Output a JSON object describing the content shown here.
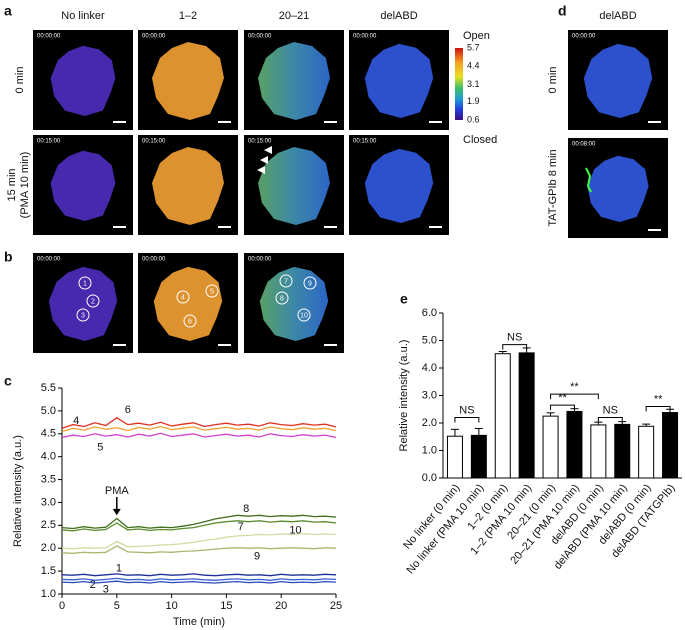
{
  "panel_labels": [
    "a",
    "b",
    "c",
    "d",
    "e"
  ],
  "panel_a": {
    "columns": [
      "No linker",
      "1–2",
      "20–21",
      "delABD"
    ],
    "rows": [
      [
        "0 min"
      ],
      [
        "15 min",
        "(PMA 10 min)"
      ]
    ],
    "timestamps": [
      "00:00:00",
      "00:15:00"
    ]
  },
  "colorbar": {
    "top_label": "Open",
    "bottom_label": "Closed",
    "ticks": [
      5.7,
      4.4,
      3.1,
      1.9,
      0.6
    ]
  },
  "panel_b": {
    "timestamp": "00:00:00",
    "rois": [
      "1",
      "2",
      "3",
      "4",
      "5",
      "6",
      "7",
      "8",
      "9",
      "10"
    ]
  },
  "panel_d": {
    "column": "delABD",
    "rows": [
      "0 min",
      "TAT-GPIb 8 min"
    ],
    "timestamps": [
      "00:00:00",
      "00:08:00"
    ]
  },
  "chart_data": [
    {
      "type": "line",
      "x_label": "Time (min)",
      "y_label": "Relative intensity (a.u.)",
      "x": [
        0,
        1,
        2,
        3,
        4,
        5,
        6,
        7,
        8,
        9,
        10,
        11,
        12,
        13,
        14,
        15,
        16,
        17,
        18,
        19,
        20,
        21,
        22,
        23,
        24,
        25
      ],
      "xlim": [
        0,
        25
      ],
      "xticks": [
        0,
        5,
        10,
        15,
        20,
        25
      ],
      "ylim": [
        1,
        5.5
      ],
      "yticks": [
        {
          "value": 1,
          "label": "1.0"
        },
        {
          "value": 1.5,
          "label": "1.5"
        },
        {
          "value": 2,
          "label": "2.0"
        },
        {
          "value": 2.5,
          "label": "2.5"
        },
        {
          "value": 3,
          "label": "3.0"
        },
        {
          "value": 3.5,
          "label": "3.5"
        },
        {
          "value": 4,
          "label": "4.0"
        },
        {
          "value": 4.5,
          "label": "4.5"
        },
        {
          "value": 5,
          "label": "5.0"
        },
        {
          "value": 5.5,
          "label": "5.5"
        }
      ],
      "annotation": {
        "text": "PMA",
        "x": 5
      },
      "series": [
        {
          "name": "1",
          "color": "#1f2f9a",
          "values": [
            1.42,
            1.41,
            1.43,
            1.4,
            1.42,
            1.44,
            1.41,
            1.42,
            1.4,
            1.43,
            1.41,
            1.42,
            1.44,
            1.41,
            1.4,
            1.42,
            1.43,
            1.41,
            1.42,
            1.4,
            1.43,
            1.41,
            1.42,
            1.41,
            1.43,
            1.42
          ]
        },
        {
          "name": "2",
          "color": "#3b5fd8",
          "values": [
            1.32,
            1.31,
            1.33,
            1.3,
            1.32,
            1.34,
            1.31,
            1.32,
            1.3,
            1.33,
            1.31,
            1.32,
            1.33,
            1.31,
            1.3,
            1.32,
            1.33,
            1.31,
            1.32,
            1.3,
            1.33,
            1.31,
            1.32,
            1.31,
            1.33,
            1.32
          ]
        },
        {
          "name": "3",
          "color": "#2a48b8",
          "values": [
            1.26,
            1.25,
            1.27,
            1.24,
            1.26,
            1.28,
            1.25,
            1.26,
            1.24,
            1.27,
            1.25,
            1.26,
            1.27,
            1.25,
            1.24,
            1.26,
            1.27,
            1.25,
            1.26,
            1.24,
            1.27,
            1.25,
            1.26,
            1.25,
            1.27,
            1.26
          ]
        },
        {
          "name": "4",
          "color": "#f0a030",
          "values": [
            4.55,
            4.62,
            4.58,
            4.65,
            4.6,
            4.63,
            4.57,
            4.64,
            4.6,
            4.66,
            4.59,
            4.62,
            4.65,
            4.58,
            4.61,
            4.64,
            4.6,
            4.62,
            4.58,
            4.65,
            4.61,
            4.59,
            4.63,
            4.6,
            4.62,
            4.57
          ]
        },
        {
          "name": "5",
          "color": "#d040d0",
          "values": [
            4.42,
            4.47,
            4.44,
            4.5,
            4.45,
            4.48,
            4.43,
            4.49,
            4.45,
            4.51,
            4.44,
            4.47,
            4.5,
            4.43,
            4.46,
            4.49,
            4.45,
            4.47,
            4.43,
            4.5,
            4.46,
            4.44,
            4.48,
            4.45,
            4.47,
            4.42
          ]
        },
        {
          "name": "6",
          "color": "#e03020",
          "values": [
            4.62,
            4.7,
            4.66,
            4.74,
            4.68,
            4.85,
            4.7,
            4.73,
            4.69,
            4.75,
            4.67,
            4.71,
            4.74,
            4.66,
            4.7,
            4.73,
            4.69,
            4.71,
            4.67,
            4.74,
            4.7,
            4.68,
            4.72,
            4.69,
            4.71,
            4.65
          ]
        },
        {
          "name": "7",
          "color": "#5a8a2a",
          "values": [
            2.4,
            2.38,
            2.42,
            2.39,
            2.41,
            2.55,
            2.4,
            2.42,
            2.39,
            2.41,
            2.4,
            2.43,
            2.45,
            2.5,
            2.55,
            2.58,
            2.6,
            2.58,
            2.6,
            2.57,
            2.59,
            2.58,
            2.6,
            2.57,
            2.58,
            2.55
          ]
        },
        {
          "name": "8",
          "color": "#3f6e1c",
          "values": [
            2.45,
            2.43,
            2.47,
            2.44,
            2.46,
            2.65,
            2.45,
            2.47,
            2.44,
            2.46,
            2.45,
            2.48,
            2.52,
            2.58,
            2.64,
            2.68,
            2.72,
            2.7,
            2.72,
            2.69,
            2.71,
            2.7,
            2.72,
            2.69,
            2.7,
            2.68
          ]
        },
        {
          "name": "9",
          "color": "#a8b870",
          "values": [
            1.9,
            1.89,
            1.91,
            1.9,
            1.91,
            2.05,
            1.92,
            1.91,
            1.9,
            1.92,
            1.91,
            1.93,
            1.94,
            1.96,
            1.98,
            2,
            2.01,
            2,
            2.01,
            1.99,
            2,
            2.01,
            2,
            1.99,
            2.01,
            2
          ]
        },
        {
          "name": "10",
          "color": "#d0dca0",
          "values": [
            2,
            1.99,
            2.01,
            2,
            2.01,
            2.15,
            2.03,
            2.04,
            2.05,
            2.07,
            2.08,
            2.1,
            2.13,
            2.17,
            2.2,
            2.24,
            2.27,
            2.28,
            2.3,
            2.29,
            2.31,
            2.3,
            2.32,
            2.3,
            2.31,
            2.3
          ]
        }
      ]
    },
    {
      "type": "bar",
      "y_label": "Relative intensity (a.u.)",
      "categories": [
        "No linker (0 min)",
        "No linker (PMA 10 min)",
        "1–2 (0 min)",
        "1–2 (PMA 10 min)",
        "20–21 (0 min)",
        "20–21 (PMA 10 min)",
        "delABD (0 min)",
        "delABD (PMA 10 min)",
        "delABD (0 min)",
        "delABD (TATGPIb)"
      ],
      "values": [
        1.52,
        1.55,
        4.52,
        4.55,
        2.25,
        2.42,
        1.93,
        1.95,
        1.88,
        2.38
      ],
      "errors": [
        0.25,
        0.25,
        0.08,
        0.18,
        0.12,
        0.1,
        0.1,
        0.1,
        0.08,
        0.12
      ],
      "colors": [
        "#ffffff",
        "#000000",
        "#ffffff",
        "#000000",
        "#ffffff",
        "#000000",
        "#ffffff",
        "#000000",
        "#ffffff",
        "#000000"
      ],
      "ylim": [
        0,
        6
      ],
      "yticks": [
        {
          "value": 0,
          "label": "0.0"
        },
        {
          "value": 1,
          "label": "1.0"
        },
        {
          "value": 2,
          "label": "2.0"
        },
        {
          "value": 3,
          "label": "3.0"
        },
        {
          "value": 4,
          "label": "4.0"
        },
        {
          "value": 5,
          "label": "5.0"
        },
        {
          "value": 6,
          "label": "6.0"
        }
      ],
      "brackets": [
        {
          "pair": [
            0,
            1
          ],
          "y": 2.2,
          "label": "NS"
        },
        {
          "pair": [
            2,
            3
          ],
          "y": 4.85,
          "label": "NS"
        },
        {
          "pair": [
            4,
            5
          ],
          "y": 2.65,
          "label": "**"
        },
        {
          "pair": [
            4,
            6
          ],
          "y": 3.05,
          "label": "**"
        },
        {
          "pair": [
            6,
            7
          ],
          "y": 2.2,
          "label": "NS"
        },
        {
          "pair": [
            8,
            9
          ],
          "y": 2.6,
          "label": "**"
        }
      ]
    }
  ]
}
